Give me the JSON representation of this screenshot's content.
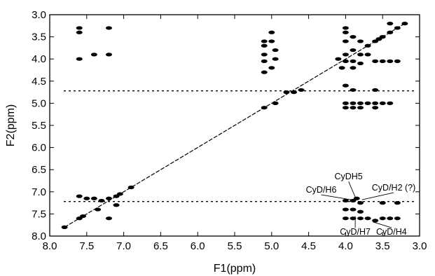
{
  "chart_data": {
    "type": "scatter",
    "xlabel": "F1(ppm)",
    "ylabel": "F2(ppm)",
    "xlim": [
      8.0,
      3.0
    ],
    "ylim": [
      3.0,
      8.0
    ],
    "x_ticks": [
      "8.0",
      "7.5",
      "7.0",
      "6.5",
      "6.0",
      "5.5",
      "5.0",
      "4.5",
      "4.0",
      "3.5",
      "3.0"
    ],
    "y_ticks": [
      "3.0",
      "3.5",
      "4.0",
      "4.5",
      "5.0",
      "5.5",
      "6.0",
      "6.5",
      "7.0",
      "7.5",
      "8.0"
    ],
    "grid": false,
    "horizontal_ridges_ppm": [
      4.72,
      7.22
    ],
    "diagonal": {
      "from": [
        7.8,
        7.8
      ],
      "to": [
        3.2,
        3.2
      ]
    },
    "series": [
      {
        "values": [
          {
            "x": 7.6,
            "y": 3.3
          },
          {
            "x": 7.6,
            "y": 3.4
          },
          {
            "x": 7.6,
            "y": 4.0
          },
          {
            "x": 7.4,
            "y": 3.9
          },
          {
            "x": 7.2,
            "y": 3.3
          },
          {
            "x": 7.2,
            "y": 3.9
          },
          {
            "x": 7.6,
            "y": 7.1
          },
          {
            "x": 7.5,
            "y": 7.15
          },
          {
            "x": 7.4,
            "y": 7.15
          },
          {
            "x": 7.3,
            "y": 7.2
          },
          {
            "x": 7.2,
            "y": 7.15
          },
          {
            "x": 7.1,
            "y": 7.1
          },
          {
            "x": 7.05,
            "y": 7.05
          },
          {
            "x": 7.1,
            "y": 7.3
          },
          {
            "x": 7.35,
            "y": 7.4
          },
          {
            "x": 7.6,
            "y": 7.6
          },
          {
            "x": 7.55,
            "y": 7.55
          },
          {
            "x": 7.2,
            "y": 7.6
          },
          {
            "x": 7.8,
            "y": 7.8
          },
          {
            "x": 6.9,
            "y": 6.9
          },
          {
            "x": 5.1,
            "y": 3.6
          },
          {
            "x": 5.1,
            "y": 3.7
          },
          {
            "x": 5.1,
            "y": 3.9
          },
          {
            "x": 5.1,
            "y": 4.05
          },
          {
            "x": 5.0,
            "y": 3.4
          },
          {
            "x": 5.0,
            "y": 3.6
          },
          {
            "x": 4.95,
            "y": 3.8
          },
          {
            "x": 4.95,
            "y": 4.0
          },
          {
            "x": 5.0,
            "y": 4.2
          },
          {
            "x": 5.1,
            "y": 4.3
          },
          {
            "x": 5.1,
            "y": 5.1
          },
          {
            "x": 4.95,
            "y": 5.0
          },
          {
            "x": 4.8,
            "y": 4.75
          },
          {
            "x": 4.7,
            "y": 4.75
          },
          {
            "x": 4.6,
            "y": 4.7
          },
          {
            "x": 4.0,
            "y": 3.3
          },
          {
            "x": 4.0,
            "y": 3.4
          },
          {
            "x": 4.0,
            "y": 3.6
          },
          {
            "x": 3.9,
            "y": 3.5
          },
          {
            "x": 3.8,
            "y": 3.6
          },
          {
            "x": 3.7,
            "y": 3.7
          },
          {
            "x": 3.6,
            "y": 3.6
          },
          {
            "x": 3.55,
            "y": 3.55
          },
          {
            "x": 3.5,
            "y": 3.5
          },
          {
            "x": 3.4,
            "y": 3.4
          },
          {
            "x": 3.3,
            "y": 3.3
          },
          {
            "x": 4.0,
            "y": 3.9
          },
          {
            "x": 3.9,
            "y": 3.8
          },
          {
            "x": 3.8,
            "y": 3.9
          },
          {
            "x": 3.7,
            "y": 3.9
          },
          {
            "x": 4.1,
            "y": 4.0
          },
          {
            "x": 4.0,
            "y": 4.05
          },
          {
            "x": 3.9,
            "y": 4.05
          },
          {
            "x": 3.8,
            "y": 4.1
          },
          {
            "x": 3.6,
            "y": 4.05
          },
          {
            "x": 3.5,
            "y": 4.05
          },
          {
            "x": 3.4,
            "y": 4.05
          },
          {
            "x": 3.3,
            "y": 4.05
          },
          {
            "x": 4.05,
            "y": 4.2
          },
          {
            "x": 3.9,
            "y": 4.2
          },
          {
            "x": 4.0,
            "y": 4.6
          },
          {
            "x": 3.9,
            "y": 4.7
          },
          {
            "x": 3.6,
            "y": 4.7
          },
          {
            "x": 3.4,
            "y": 3.2
          },
          {
            "x": 3.2,
            "y": 3.2
          },
          {
            "x": 4.0,
            "y": 5.0
          },
          {
            "x": 3.9,
            "y": 5.0
          },
          {
            "x": 3.8,
            "y": 5.0
          },
          {
            "x": 3.7,
            "y": 5.0
          },
          {
            "x": 3.6,
            "y": 5.0
          },
          {
            "x": 4.0,
            "y": 5.1
          },
          {
            "x": 3.9,
            "y": 5.1
          },
          {
            "x": 3.8,
            "y": 5.1
          },
          {
            "x": 3.6,
            "y": 5.1
          },
          {
            "x": 3.5,
            "y": 5.0
          },
          {
            "x": 3.4,
            "y": 5.0
          },
          {
            "x": 4.0,
            "y": 7.2
          },
          {
            "x": 3.9,
            "y": 7.2
          },
          {
            "x": 3.85,
            "y": 7.15
          },
          {
            "x": 3.8,
            "y": 7.25
          },
          {
            "x": 3.5,
            "y": 7.25
          },
          {
            "x": 3.3,
            "y": 7.25
          },
          {
            "x": 4.0,
            "y": 7.4
          },
          {
            "x": 3.9,
            "y": 7.4
          },
          {
            "x": 3.8,
            "y": 7.45
          },
          {
            "x": 4.0,
            "y": 7.6
          },
          {
            "x": 3.9,
            "y": 7.6
          },
          {
            "x": 3.8,
            "y": 7.6
          },
          {
            "x": 3.7,
            "y": 7.6
          },
          {
            "x": 3.6,
            "y": 7.65
          },
          {
            "x": 3.5,
            "y": 7.6
          },
          {
            "x": 3.4,
            "y": 7.6
          },
          {
            "x": 3.3,
            "y": 7.6
          }
        ]
      }
    ],
    "annotations": [
      {
        "text": "CyDH5",
        "x": 3.96,
        "y": 6.72,
        "target": [
          3.87,
          7.12
        ]
      },
      {
        "text": "CyD/H6",
        "x": 4.33,
        "y": 7.02,
        "target": [
          3.92,
          7.18
        ]
      },
      {
        "text": "CyD/H2 (?)",
        "x": 3.35,
        "y": 6.97,
        "target": [
          3.78,
          7.18
        ]
      },
      {
        "text": "CyD/H7",
        "x": 3.87,
        "y": 7.97,
        "target": [
          3.87,
          7.55
        ]
      },
      {
        "text": "CyD/H4",
        "x": 3.38,
        "y": 7.97,
        "target": [
          3.63,
          7.68
        ]
      }
    ]
  }
}
